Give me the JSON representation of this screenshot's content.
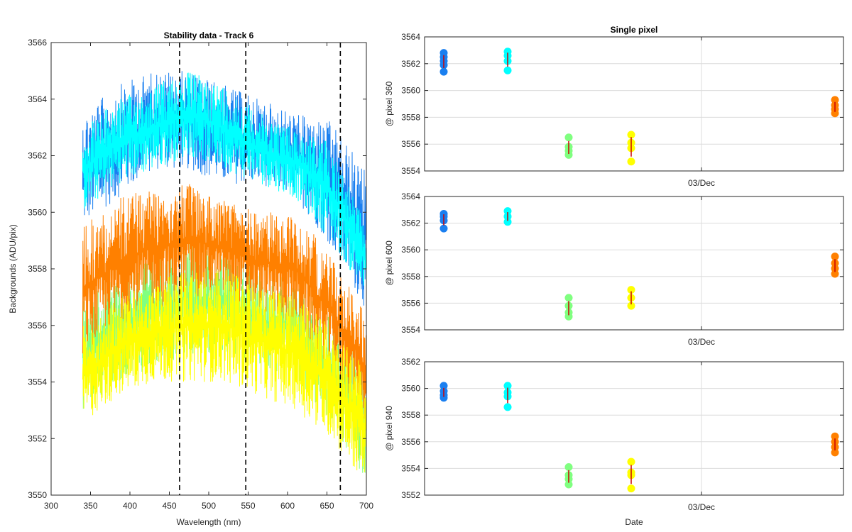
{
  "chart_data": [
    {
      "type": "line",
      "title": "Stability data - Track 6",
      "xlabel": "Wavelength (nm)",
      "ylabel": "Backgrounds (ADU/pix)",
      "xlim": [
        300,
        700
      ],
      "ylim": [
        3550,
        3566
      ],
      "x_ticks": [
        300,
        350,
        400,
        450,
        500,
        550,
        600,
        650,
        700
      ],
      "y_ticks": [
        3550,
        3552,
        3554,
        3556,
        3558,
        3560,
        3562,
        3564,
        3566
      ],
      "x_range": [
        340,
        700
      ],
      "vertical_dashed_lines": [
        463,
        547,
        667
      ],
      "series": [
        {
          "color": "#1a7ff0",
          "lower": [
            3559.5,
            3560.5,
            3561.5,
            3561.5,
            3561,
            3561,
            3560.5,
            3558.8,
            3556.5
          ],
          "upper": [
            3563.5,
            3564.5,
            3565,
            3565,
            3564.5,
            3564,
            3563.5,
            3563.2,
            3561.5
          ]
        },
        {
          "color": "#00ffff",
          "lower": [
            3560,
            3561,
            3561.5,
            3562,
            3561.5,
            3561,
            3560.5,
            3559,
            3557
          ],
          "upper": [
            3563,
            3564,
            3564.5,
            3565,
            3564.5,
            3563.5,
            3563,
            3562.5,
            3559.5
          ]
        },
        {
          "color": "#80ff80",
          "lower": [
            3553,
            3554,
            3554.5,
            3555,
            3555,
            3554.5,
            3554,
            3552.5,
            3550.5
          ],
          "upper": [
            3557,
            3558,
            3558.5,
            3559,
            3558.5,
            3558,
            3557.5,
            3556.5,
            3554.5
          ]
        },
        {
          "color": "#ff8000",
          "lower": [
            3555,
            3556,
            3556.5,
            3557,
            3557,
            3556.5,
            3556,
            3554.5,
            3552.5
          ],
          "upper": [
            3559.5,
            3560.5,
            3561,
            3561,
            3560.5,
            3560,
            3560,
            3558.5,
            3556.5
          ]
        },
        {
          "color": "#ffff00",
          "lower": [
            3552.5,
            3553.5,
            3554,
            3554,
            3554,
            3553.5,
            3553,
            3552,
            3550.2
          ],
          "upper": [
            3556,
            3557,
            3557.5,
            3558,
            3558,
            3557.5,
            3557,
            3556,
            3554.5
          ]
        }
      ]
    },
    {
      "type": "scatter",
      "title": "Single pixel",
      "ylabel": "@ pixel 360",
      "x_tick_labels": [
        "03/Dec"
      ],
      "ylim": [
        3554,
        3564
      ],
      "y_ticks": [
        3554,
        3556,
        3558,
        3560,
        3562,
        3564
      ],
      "groups": [
        {
          "color": "#1a7ff0",
          "values": [
            3562.8,
            3562.5,
            3562.2,
            3561.9,
            3561.4
          ]
        },
        {
          "color": "#00ffff",
          "values": [
            3562.9,
            3562.6,
            3562.2,
            3561.5
          ]
        },
        {
          "color": "#80ff80",
          "values": [
            3556.5,
            3555.8,
            3555.5,
            3555.2
          ]
        },
        {
          "color": "#ffff00",
          "values": [
            3556.7,
            3556.1,
            3555.7,
            3554.7
          ]
        },
        {
          "color": "#ff8000",
          "values": [
            3559.3,
            3558.9,
            3558.6,
            3558.3
          ]
        }
      ]
    },
    {
      "type": "scatter",
      "ylabel": "@ pixel 600",
      "x_tick_labels": [
        "03/Dec"
      ],
      "ylim": [
        3554,
        3564
      ],
      "y_ticks": [
        3554,
        3556,
        3558,
        3560,
        3562,
        3564
      ],
      "groups": [
        {
          "color": "#1a7ff0",
          "values": [
            3562.7,
            3562.5,
            3562.2,
            3561.6
          ]
        },
        {
          "color": "#00ffff",
          "values": [
            3562.9,
            3562.5,
            3562.1
          ]
        },
        {
          "color": "#80ff80",
          "values": [
            3556.4,
            3555.8,
            3555.3,
            3555
          ]
        },
        {
          "color": "#ffff00",
          "values": [
            3557,
            3556.4,
            3555.8
          ]
        },
        {
          "color": "#ff8000",
          "values": [
            3559.5,
            3559,
            3558.6,
            3558.2
          ]
        }
      ]
    },
    {
      "type": "scatter",
      "ylabel": "@ pixel 940",
      "xlabel": "Date",
      "x_tick_labels": [
        "03/Dec"
      ],
      "ylim": [
        3552,
        3562
      ],
      "y_ticks": [
        3552,
        3554,
        3556,
        3558,
        3560,
        3562
      ],
      "groups": [
        {
          "color": "#1a7ff0",
          "values": [
            3560.2,
            3559.8,
            3559.5,
            3559.3
          ]
        },
        {
          "color": "#00ffff",
          "values": [
            3560.2,
            3559.7,
            3559.4,
            3558.6
          ]
        },
        {
          "color": "#80ff80",
          "values": [
            3554.1,
            3553.5,
            3553.2,
            3552.8
          ]
        },
        {
          "color": "#ffff00",
          "values": [
            3554.5,
            3553.7,
            3553.5,
            3552.5
          ]
        },
        {
          "color": "#ff8000",
          "values": [
            3556.4,
            3556,
            3555.6,
            3555.2
          ]
        }
      ]
    }
  ]
}
